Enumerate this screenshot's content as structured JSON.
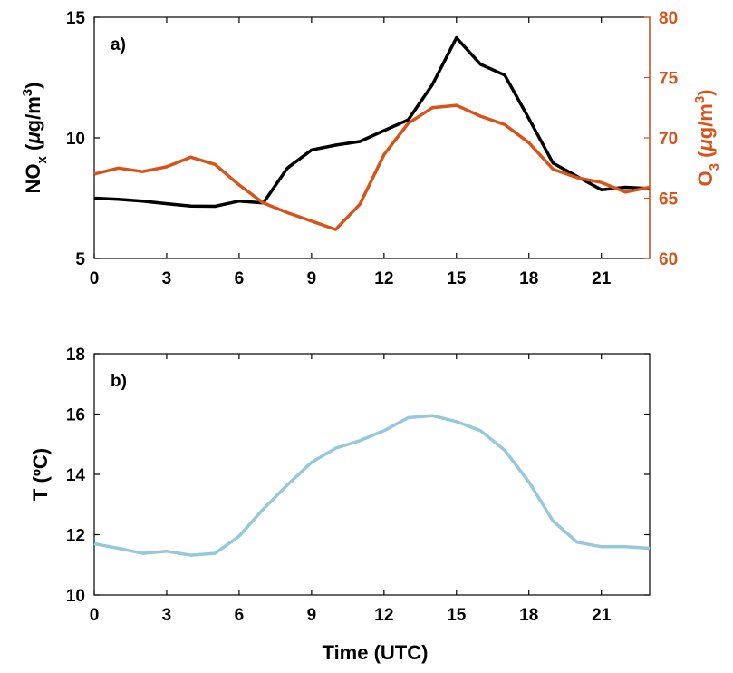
{
  "colors": {
    "nox": "#000000",
    "o3": "#D95319",
    "temp": "#95C8DA"
  },
  "chart_data": [
    {
      "type": "line",
      "panel_label": "a)",
      "ylabel_left": {
        "main": "NO",
        "sub": "x",
        "units_pre": " (",
        "mu": "μ",
        "units_post": "g/m",
        "sup": "3",
        "close": ")"
      },
      "ylabel_right": {
        "main": "O",
        "sub": "3",
        "units_pre": " (",
        "mu": "μ",
        "units_post": "g/m",
        "sup": "3",
        "close": ")"
      },
      "xlim": [
        0,
        23
      ],
      "ylim_left": [
        5,
        15
      ],
      "ylim_right": [
        60,
        80
      ],
      "x_ticks": [
        "0",
        "3",
        "6",
        "9",
        "12",
        "15",
        "18",
        "21"
      ],
      "y_ticks_left": [
        "5",
        "10",
        "15"
      ],
      "y_ticks_right": [
        "60",
        "65",
        "70",
        "75",
        "80"
      ],
      "grid": false,
      "series": [
        {
          "axis": "left",
          "color": "#000000",
          "x": [
            0,
            1,
            2,
            3,
            4,
            5,
            6,
            7,
            8,
            9,
            10,
            11,
            12,
            13,
            14,
            15,
            16,
            17,
            18,
            19,
            20,
            21,
            22,
            23
          ],
          "values": [
            7.5,
            7.45,
            7.38,
            7.27,
            7.17,
            7.16,
            7.38,
            7.3,
            8.75,
            9.5,
            9.7,
            9.85,
            10.3,
            10.75,
            12.2,
            14.15,
            13.05,
            12.6,
            10.8,
            8.95,
            8.4,
            7.85,
            7.95,
            7.9
          ]
        },
        {
          "axis": "right",
          "color": "#D95319",
          "x": [
            0,
            1,
            2,
            3,
            4,
            5,
            6,
            7,
            8,
            9,
            10,
            11,
            12,
            13,
            14,
            15,
            16,
            17,
            18,
            19,
            20,
            21,
            22,
            23
          ],
          "values": [
            67,
            67.5,
            67.2,
            67.6,
            68.4,
            67.8,
            66.1,
            64.6,
            63.8,
            63.1,
            62.4,
            64.5,
            68.6,
            71.2,
            72.5,
            72.7,
            71.8,
            71.1,
            69.6,
            67.4,
            66.7,
            66.3,
            65.5,
            65.9
          ]
        }
      ]
    },
    {
      "type": "line",
      "panel_label": "b)",
      "ylabel": "T (ºC)",
      "xlabel": "Time (UTC)",
      "xlim": [
        0,
        23
      ],
      "ylim": [
        10,
        18
      ],
      "x_ticks": [
        "0",
        "3",
        "6",
        "9",
        "12",
        "15",
        "18",
        "21"
      ],
      "y_ticks": [
        "10",
        "12",
        "14",
        "16",
        "18"
      ],
      "grid": false,
      "series": [
        {
          "color": "#95C8DA",
          "x": [
            0,
            1,
            2,
            3,
            4,
            5,
            6,
            7,
            8,
            9,
            10,
            11,
            12,
            13,
            14,
            15,
            16,
            17,
            18,
            19,
            20,
            21,
            22,
            23
          ],
          "values": [
            11.7,
            11.55,
            11.38,
            11.45,
            11.32,
            11.38,
            11.95,
            12.85,
            13.65,
            14.4,
            14.87,
            15.12,
            15.45,
            15.88,
            15.95,
            15.75,
            15.45,
            14.8,
            13.75,
            12.45,
            11.75,
            11.6,
            11.6,
            11.55
          ]
        }
      ]
    }
  ]
}
